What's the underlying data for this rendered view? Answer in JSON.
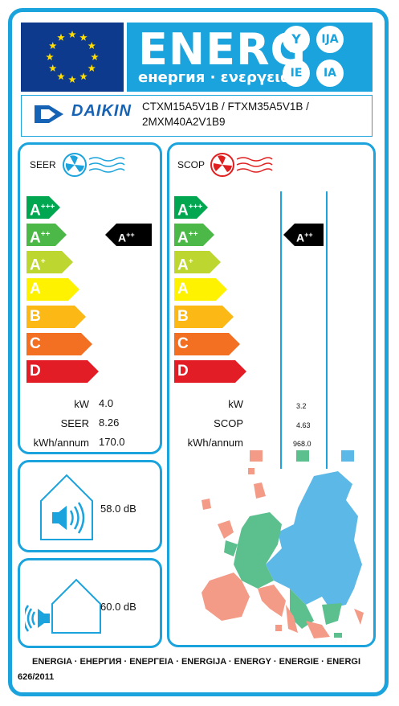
{
  "header": {
    "energ": "ENERG",
    "subtitle": "енергия · ενεργεια",
    "circles": [
      "Y",
      "IJA",
      "IE",
      "IA"
    ]
  },
  "supplier": {
    "logo": "DAIKIN",
    "model_line1": "CTXM15A5V1B / FTXM35A5V1B /",
    "model_line2": "2MXM40A2V1B9"
  },
  "colors": {
    "frame": "#1aa3dc",
    "flag": "#0d3a8c",
    "star": "#ffdd00",
    "cool_fan": "#1aa3dc",
    "heat_fan": "#e02020"
  },
  "scale": [
    {
      "base": "A",
      "sup": "+++",
      "color": "#00a650"
    },
    {
      "base": "A",
      "sup": "++",
      "color": "#4cb848"
    },
    {
      "base": "A",
      "sup": "+",
      "color": "#bed630"
    },
    {
      "base": "A",
      "sup": "",
      "color": "#fff200"
    },
    {
      "base": "B",
      "sup": "",
      "color": "#fcb814"
    },
    {
      "base": "C",
      "sup": "",
      "color": "#f36f21"
    },
    {
      "base": "D",
      "sup": "",
      "color": "#e31d25"
    }
  ],
  "seer": {
    "title": "SEER",
    "rating": "A",
    "rating_sup": "++",
    "rows": [
      {
        "label": "kW",
        "value": "4.0"
      },
      {
        "label": "SEER",
        "value": "8.26"
      },
      {
        "label": "kWh/annum",
        "value": "170.0"
      }
    ]
  },
  "scop": {
    "title": "SCOP",
    "rating": "A",
    "rating_sup": "++",
    "rows": [
      {
        "label": "kW",
        "value": "3.2"
      },
      {
        "label": "SCOP",
        "value": "4.63"
      },
      {
        "label": "kWh/annum",
        "value": "968.0"
      }
    ],
    "zone_colors": [
      "#f39b86",
      "#5cbf8e",
      "#5cb8e6"
    ]
  },
  "noise": {
    "indoor": "58.0 dB",
    "outdoor": "60.0 dB"
  },
  "footer": {
    "languages": "ENERGIA · ЕНЕРГИЯ · ΕΝΕΡΓΕΙΑ · ENERGIJA · ENERGY · ENERGIE · ENERGI",
    "regulation": "626/2011"
  }
}
